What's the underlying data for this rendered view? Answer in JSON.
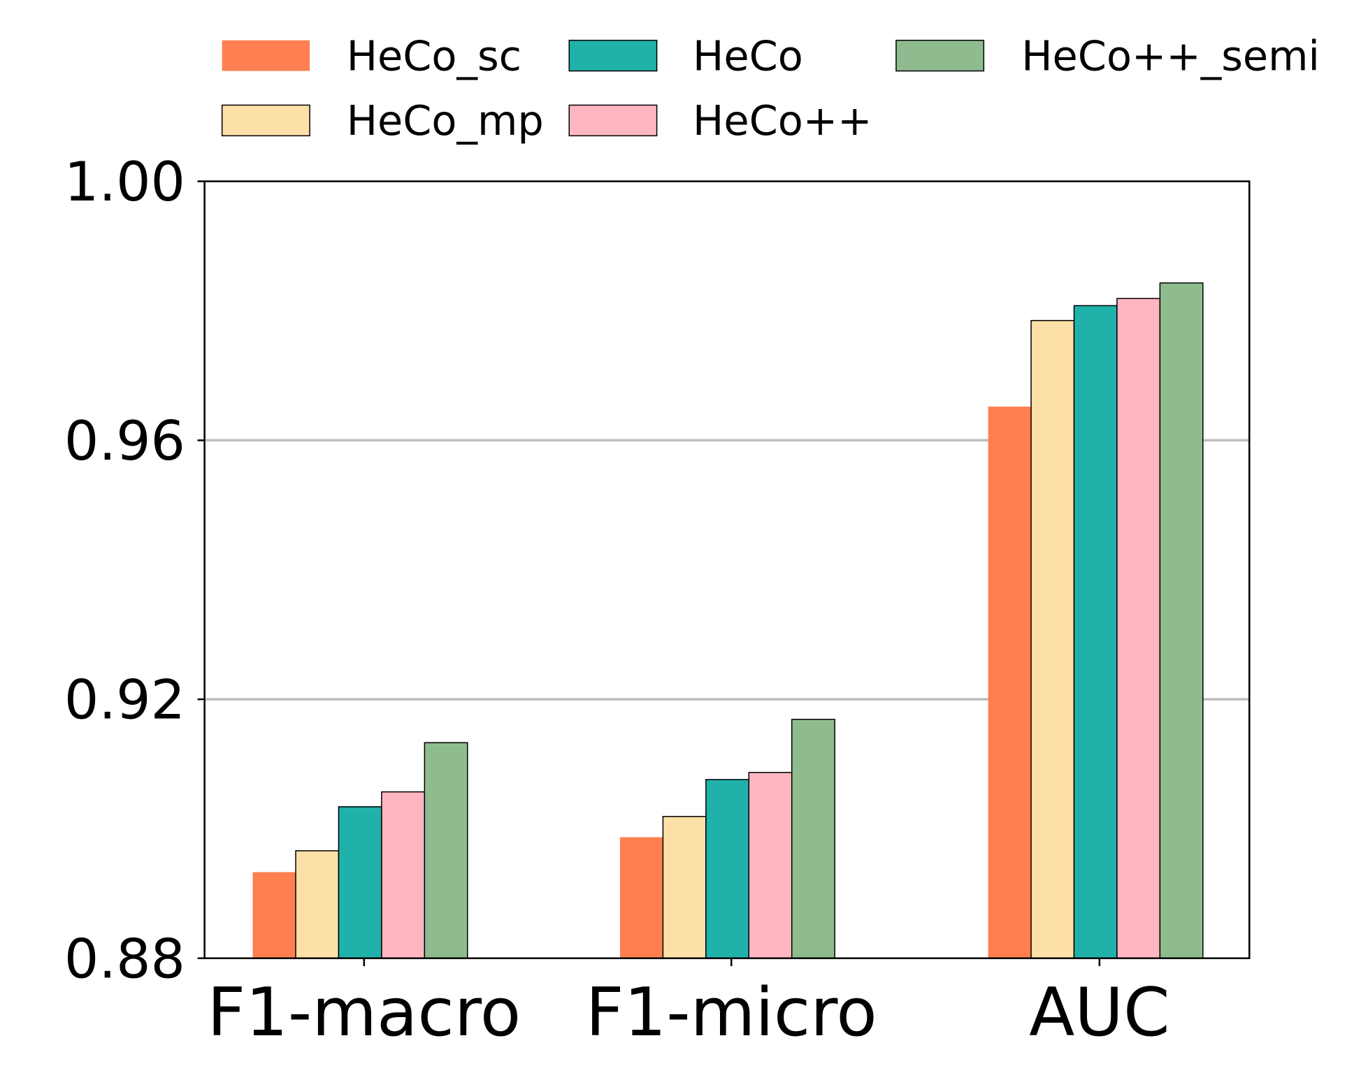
{
  "chart_data": {
    "type": "bar",
    "title": "",
    "xlabel": "",
    "ylabel": "",
    "ylim": [
      0.88,
      1.0
    ],
    "yticks": [
      "0.88",
      "0.92",
      "0.96",
      "1.00"
    ],
    "ytick_values": [
      0.88,
      0.92,
      0.96,
      1.0
    ],
    "grid": "horizontal",
    "legend_placement": "top",
    "categories": [
      "F1-macro",
      "F1-micro",
      "AUC"
    ],
    "series": [
      {
        "name": "HeCo_sc",
        "color": "#FF7F50",
        "values": [
          0.8933,
          0.8987,
          0.9652
        ]
      },
      {
        "name": "HeCo_mp",
        "color": "#FDDFA8",
        "values": [
          0.8966,
          0.9019,
          0.9785
        ]
      },
      {
        "name": "HeCo",
        "color": "#20B2AA",
        "values": [
          0.9034,
          0.9076,
          0.9808
        ]
      },
      {
        "name": "HeCo++",
        "color": "#FFB6C1",
        "values": [
          0.9057,
          0.9087,
          0.9819
        ]
      },
      {
        "name": "HeCo++_semi",
        "color": "#8FBC8F",
        "values": [
          0.9133,
          0.9169,
          0.9843
        ]
      }
    ]
  }
}
